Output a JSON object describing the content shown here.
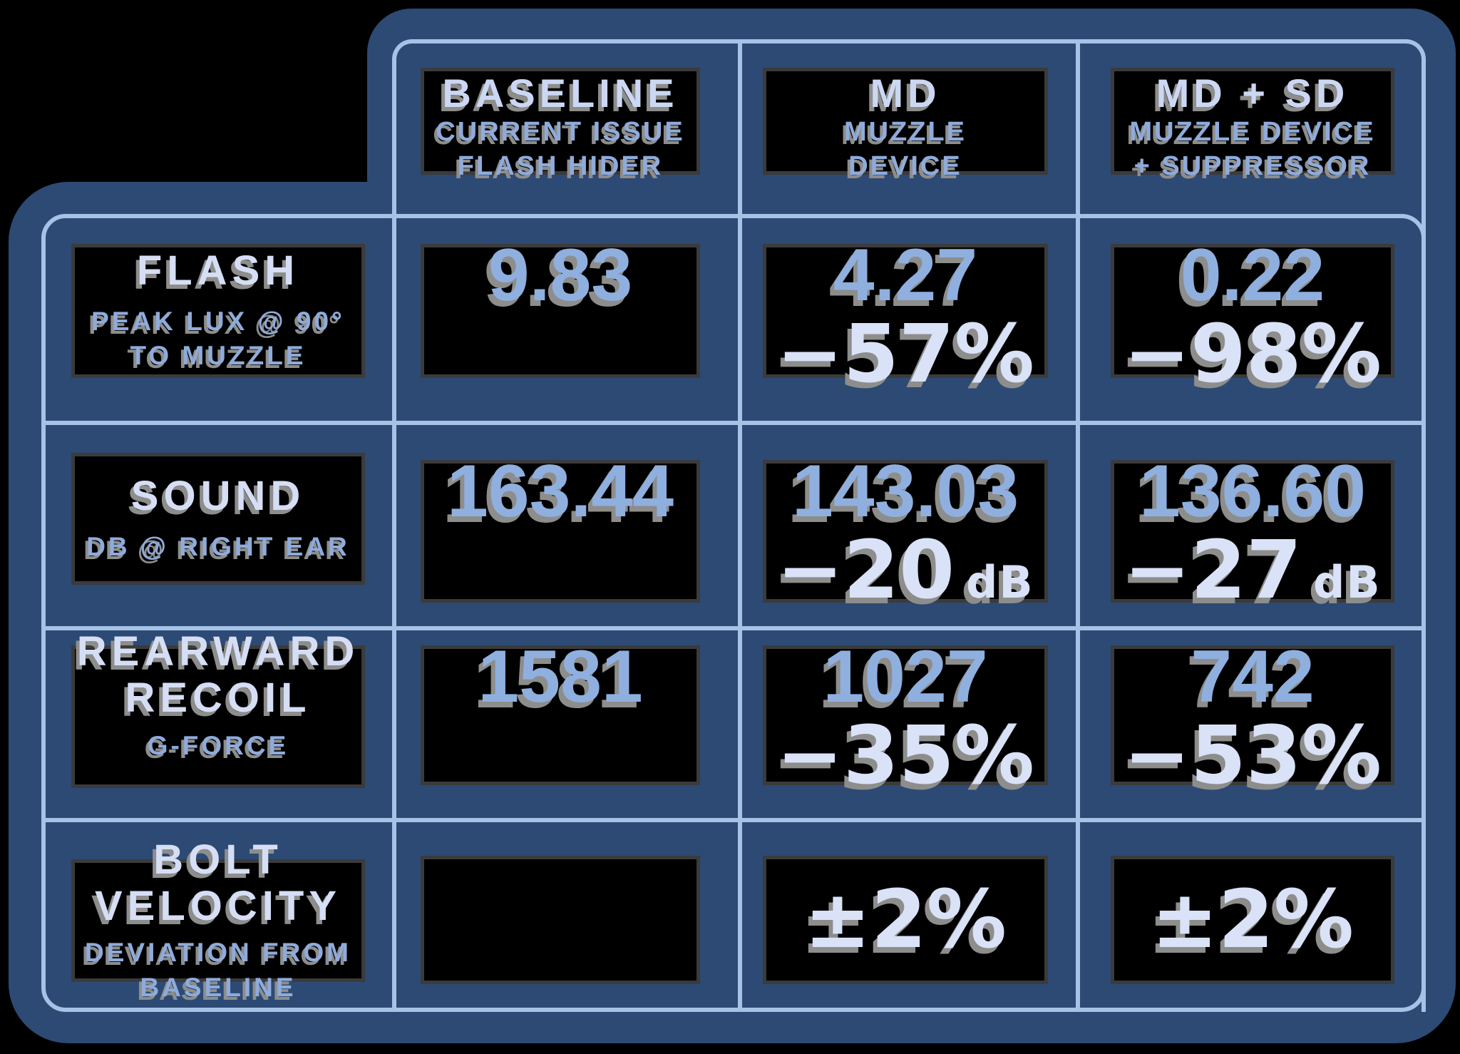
{
  "columns": [
    {
      "id": "baseline",
      "title": "BASELINE",
      "subtitle_lines": [
        "CURRENT ISSUE",
        "FLASH HIDER"
      ]
    },
    {
      "id": "md",
      "title": "MD",
      "subtitle_lines": [
        "MUZZLE",
        "DEVICE"
      ]
    },
    {
      "id": "md_sd",
      "title": "MD + SD",
      "subtitle_lines": [
        "MUZZLE DEVICE",
        "+ SUPPRESSOR"
      ]
    }
  ],
  "rows": [
    {
      "id": "flash",
      "title_lines": [
        "FLASH"
      ],
      "subtitle_lines": [
        "PEAK LUX @ 90°",
        "TO MUZZLE"
      ],
      "baseline": {
        "value": "9.83"
      },
      "md": {
        "value": "4.27",
        "delta": "−57%"
      },
      "md_sd": {
        "value": "0.22",
        "delta": "−98%"
      }
    },
    {
      "id": "sound",
      "title_lines": [
        "SOUND"
      ],
      "subtitle_lines": [
        "DB @ RIGHT EAR"
      ],
      "baseline": {
        "value": "163.44"
      },
      "md": {
        "value": "143.03",
        "delta": "−20",
        "delta_unit": "dB"
      },
      "md_sd": {
        "value": "136.60",
        "delta": "−27",
        "delta_unit": "dB"
      }
    },
    {
      "id": "rearward_recoil",
      "title_lines": [
        "REARWARD",
        "RECOIL"
      ],
      "subtitle_lines": [
        "G-FORCE"
      ],
      "baseline": {
        "value": "1581"
      },
      "md": {
        "value": "1027",
        "delta": "−35%"
      },
      "md_sd": {
        "value": "742",
        "delta": "−53%"
      }
    },
    {
      "id": "bolt_velocity",
      "title_lines": [
        "BOLT",
        "VELOCITY"
      ],
      "subtitle_lines": [
        "DEVIATION FROM",
        "BASELINE"
      ],
      "baseline": {
        "value": ""
      },
      "md": {
        "delta": "±2%"
      },
      "md_sd": {
        "delta": "±2%"
      }
    }
  ],
  "colors": {
    "background": "#000000",
    "panel_blue": "#2c4a74",
    "grid_line": "#a7c2e7",
    "value_text": "#8fafdf",
    "delta_text": "#dae2f8",
    "title_text": "#d5def5",
    "subtitle_text": "#8fabdb",
    "text_shadow": "#8d8d8b",
    "box_fill": "#000000",
    "box_edge": "#3b3b3b"
  },
  "chart_data": {
    "type": "table",
    "title": "",
    "columns": [
      "BASELINE (CURRENT ISSUE FLASH HIDER)",
      "MD (MUZZLE DEVICE)",
      "MD + SD (MUZZLE DEVICE + SUPPRESSOR)"
    ],
    "metrics": [
      {
        "name": "FLASH (PEAK LUX @ 90° TO MUZZLE)",
        "values": [
          9.83,
          4.27,
          0.22
        ],
        "change_vs_baseline": [
          null,
          "−57%",
          "−98%"
        ]
      },
      {
        "name": "SOUND (DB @ RIGHT EAR)",
        "values": [
          163.44,
          143.03,
          136.6
        ],
        "change_vs_baseline": [
          null,
          "−20 dB",
          "−27 dB"
        ]
      },
      {
        "name": "REARWARD RECOIL (G-FORCE)",
        "values": [
          1581,
          1027,
          742
        ],
        "change_vs_baseline": [
          null,
          "−35%",
          "−53%"
        ]
      },
      {
        "name": "BOLT VELOCITY (DEVIATION FROM BASELINE)",
        "values": [
          null,
          null,
          null
        ],
        "change_vs_baseline": [
          null,
          "±2%",
          "±2%"
        ]
      }
    ]
  }
}
